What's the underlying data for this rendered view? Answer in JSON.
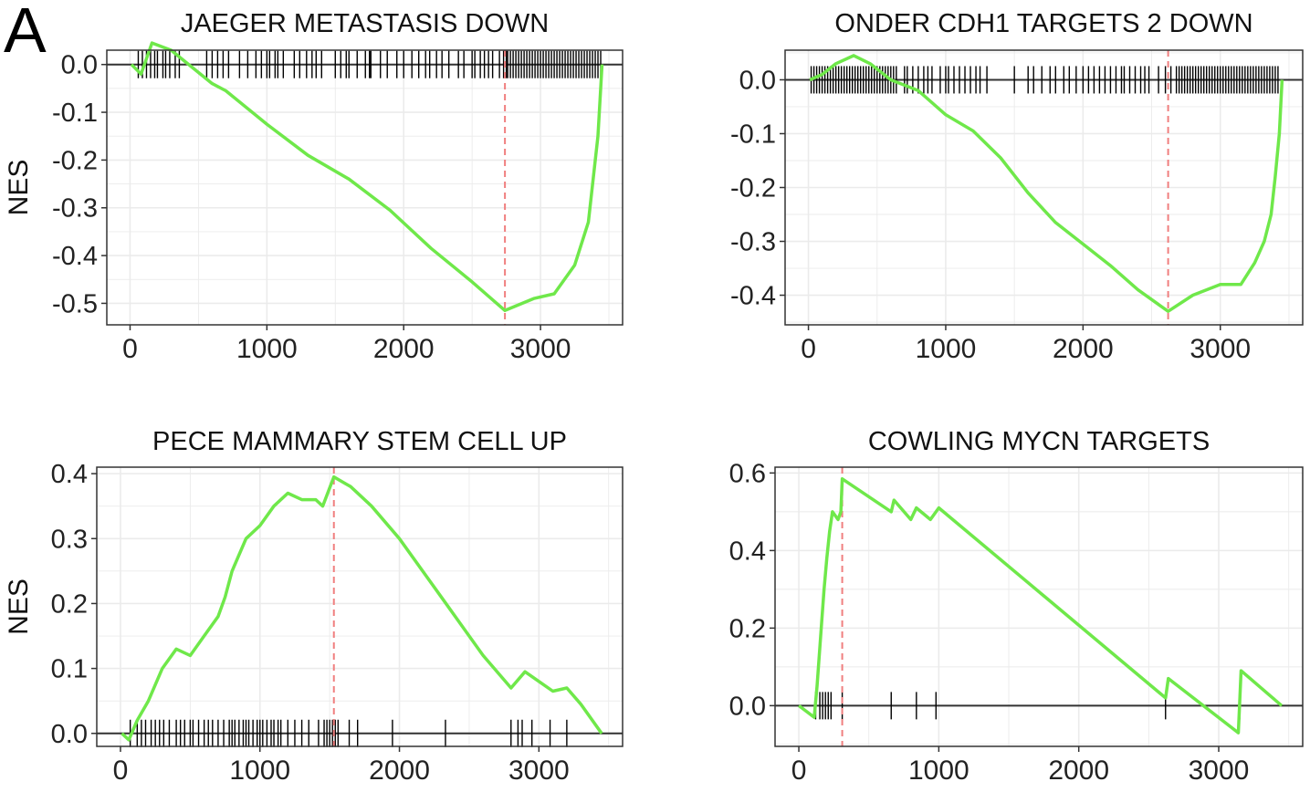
{
  "figure": {
    "panel_label": "A"
  },
  "colors": {
    "curve": "#6fe84a",
    "peak_line": "#f07f7f",
    "ticks": "#000000",
    "frame": "#333333",
    "grid": "#ebebeb"
  },
  "chart_data": [
    {
      "type": "line",
      "title": "JAEGER METASTASIS DOWN",
      "ylabel": "NES",
      "xlim": [
        -170,
        3600
      ],
      "ylim": [
        -0.545,
        0.03
      ],
      "xticks": [
        0,
        1000,
        2000,
        3000
      ],
      "xtick_labels": [
        "0",
        "1000",
        "2000",
        "3000"
      ],
      "yticks": [
        0.0,
        -0.1,
        -0.2,
        -0.3,
        -0.4,
        -0.5
      ],
      "ytick_labels": [
        "0.0",
        "-0.1",
        "-0.2",
        "-0.3",
        "-0.4",
        "-0.5"
      ],
      "grid": true,
      "baseline": 0.0,
      "peak_x": 2740,
      "rug_y": 0.0,
      "series": [
        {
          "values": [
            [
              10,
              0.0
            ],
            [
              80,
              -0.02
            ],
            [
              160,
              0.045
            ],
            [
              300,
              0.03
            ],
            [
              600,
              -0.04
            ],
            [
              700,
              -0.055
            ],
            [
              1000,
              -0.125
            ],
            [
              1300,
              -0.19
            ],
            [
              1600,
              -0.24
            ],
            [
              1900,
              -0.305
            ],
            [
              2200,
              -0.385
            ],
            [
              2500,
              -0.455
            ],
            [
              2740,
              -0.515
            ],
            [
              2950,
              -0.49
            ],
            [
              3100,
              -0.48
            ],
            [
              3250,
              -0.42
            ],
            [
              3350,
              -0.33
            ],
            [
              3420,
              -0.15
            ],
            [
              3450,
              0.0
            ]
          ]
        }
      ],
      "rug_x": [
        60,
        90,
        120,
        150,
        180,
        200,
        240,
        260,
        290,
        330,
        360,
        560,
        600,
        640,
        680,
        720,
        800,
        860,
        920,
        960,
        1000,
        1020,
        1060,
        1080,
        1120,
        1200,
        1240,
        1290,
        1330,
        1360,
        1400,
        1500,
        1540,
        1580,
        1600,
        1660,
        1720,
        1750,
        1760,
        1830,
        1880,
        1950,
        2000,
        2060,
        2110,
        2160,
        2190,
        2240,
        2280,
        2330,
        2400,
        2440,
        2500,
        2520,
        2560,
        2590,
        2620,
        2650,
        2700,
        2730,
        2750,
        2760,
        2780,
        2800,
        2820,
        2840,
        2860,
        2880,
        2900,
        2920,
        2940,
        2960,
        2980,
        3000,
        3020,
        3040,
        3060,
        3080,
        3100,
        3120,
        3140,
        3160,
        3180,
        3200,
        3220,
        3240,
        3260,
        3280,
        3300,
        3320,
        3340,
        3360,
        3380,
        3400,
        3420,
        3440
      ]
    },
    {
      "type": "line",
      "title": "ONDER CDH1 TARGETS 2 DOWN",
      "ylabel": "",
      "xlim": [
        -170,
        3600
      ],
      "ylim": [
        -0.455,
        0.055
      ],
      "xticks": [
        0,
        1000,
        2000,
        3000
      ],
      "xtick_labels": [
        "0",
        "1000",
        "2000",
        "3000"
      ],
      "yticks": [
        0.0,
        -0.1,
        -0.2,
        -0.3,
        -0.4
      ],
      "ytick_labels": [
        "0.0",
        "-0.1",
        "-0.2",
        "-0.3",
        "-0.4"
      ],
      "grid": true,
      "baseline": 0.0,
      "peak_x": 2620,
      "rug_y": 0.0,
      "series": [
        {
          "values": [
            [
              10,
              0.0
            ],
            [
              100,
              0.01
            ],
            [
              200,
              0.03
            ],
            [
              330,
              0.045
            ],
            [
              450,
              0.03
            ],
            [
              600,
              0.0
            ],
            [
              800,
              -0.02
            ],
            [
              1000,
              -0.065
            ],
            [
              1200,
              -0.095
            ],
            [
              1400,
              -0.145
            ],
            [
              1600,
              -0.21
            ],
            [
              1800,
              -0.265
            ],
            [
              2000,
              -0.305
            ],
            [
              2200,
              -0.345
            ],
            [
              2400,
              -0.39
            ],
            [
              2620,
              -0.43
            ],
            [
              2800,
              -0.4
            ],
            [
              3000,
              -0.38
            ],
            [
              3150,
              -0.38
            ],
            [
              3250,
              -0.34
            ],
            [
              3320,
              -0.3
            ],
            [
              3370,
              -0.25
            ],
            [
              3400,
              -0.18
            ],
            [
              3430,
              -0.1
            ],
            [
              3450,
              0.0
            ]
          ]
        }
      ],
      "rug_x": [
        20,
        40,
        60,
        80,
        100,
        120,
        140,
        160,
        180,
        200,
        220,
        240,
        260,
        280,
        300,
        320,
        340,
        360,
        380,
        400,
        420,
        440,
        460,
        480,
        500,
        520,
        540,
        560,
        580,
        600,
        620,
        640,
        700,
        720,
        760,
        800,
        840,
        870,
        900,
        960,
        1000,
        1020,
        1060,
        1100,
        1140,
        1180,
        1220,
        1250,
        1300,
        1500,
        1600,
        1640,
        1700,
        1760,
        1800,
        1860,
        1900,
        1950,
        2000,
        2040,
        2080,
        2120,
        2160,
        2200,
        2240,
        2280,
        2300,
        2340,
        2380,
        2420,
        2450,
        2480,
        2550,
        2600,
        2640,
        2680,
        2700,
        2720,
        2740,
        2760,
        2780,
        2800,
        2820,
        2840,
        2860,
        2880,
        2900,
        2920,
        2940,
        2960,
        2980,
        3000,
        3020,
        3040,
        3060,
        3080,
        3100,
        3120,
        3140,
        3160,
        3180,
        3200,
        3220,
        3240,
        3260,
        3280,
        3300,
        3320,
        3340,
        3360,
        3380,
        3400,
        3420
      ]
    },
    {
      "type": "line",
      "title": "PECE MAMMARY STEM CELL UP",
      "ylabel": "NES",
      "xlim": [
        -170,
        3600
      ],
      "ylim": [
        -0.02,
        0.41
      ],
      "xticks": [
        0,
        1000,
        2000,
        3000
      ],
      "xtick_labels": [
        "0",
        "1000",
        "2000",
        "3000"
      ],
      "yticks": [
        0.4,
        0.3,
        0.2,
        0.1,
        0.0
      ],
      "ytick_labels": [
        "0.4",
        "0.3",
        "0.2",
        "0.1",
        "0.0"
      ],
      "grid": true,
      "baseline": 0.0,
      "peak_x": 1530,
      "rug_y": 0.0,
      "series": [
        {
          "values": [
            [
              10,
              0.0
            ],
            [
              60,
              -0.01
            ],
            [
              120,
              0.02
            ],
            [
              200,
              0.05
            ],
            [
              300,
              0.1
            ],
            [
              400,
              0.13
            ],
            [
              500,
              0.12
            ],
            [
              600,
              0.15
            ],
            [
              700,
              0.18
            ],
            [
              750,
              0.21
            ],
            [
              800,
              0.25
            ],
            [
              900,
              0.3
            ],
            [
              1000,
              0.32
            ],
            [
              1100,
              0.35
            ],
            [
              1200,
              0.37
            ],
            [
              1300,
              0.36
            ],
            [
              1400,
              0.36
            ],
            [
              1450,
              0.35
            ],
            [
              1530,
              0.395
            ],
            [
              1650,
              0.38
            ],
            [
              1800,
              0.35
            ],
            [
              2000,
              0.3
            ],
            [
              2300,
              0.21
            ],
            [
              2600,
              0.12
            ],
            [
              2800,
              0.07
            ],
            [
              2900,
              0.095
            ],
            [
              3000,
              0.08
            ],
            [
              3100,
              0.065
            ],
            [
              3200,
              0.07
            ],
            [
              3300,
              0.045
            ],
            [
              3450,
              0.0
            ]
          ]
        }
      ],
      "rug_x": [
        70,
        120,
        150,
        180,
        220,
        250,
        280,
        310,
        350,
        400,
        430,
        460,
        500,
        520,
        560,
        600,
        630,
        660,
        700,
        740,
        780,
        800,
        820,
        850,
        880,
        900,
        920,
        950,
        980,
        1000,
        1020,
        1050,
        1080,
        1100,
        1130,
        1150,
        1200,
        1250,
        1300,
        1350,
        1420,
        1460,
        1480,
        1500,
        1520,
        1540,
        1560,
        1640,
        1700,
        1950,
        2330,
        2800,
        2850,
        2880,
        2950,
        3080,
        3200
      ]
    },
    {
      "type": "line",
      "title": "COWLING MYCN TARGETS",
      "ylabel": "",
      "xlim": [
        -170,
        3600
      ],
      "ylim": [
        -0.105,
        0.615
      ],
      "xticks": [
        0,
        1000,
        2000,
        3000
      ],
      "xtick_labels": [
        "0",
        "1000",
        "2000",
        "3000"
      ],
      "yticks": [
        0.6,
        0.4,
        0.2,
        0.0
      ],
      "ytick_labels": [
        "0.6",
        "0.4",
        "0.2",
        "0.0"
      ],
      "grid": true,
      "baseline": 0.0,
      "peak_x": 310,
      "rug_y": 0.0,
      "series": [
        {
          "values": [
            [
              0,
              0.0
            ],
            [
              110,
              -0.03
            ],
            [
              130,
              0.05
            ],
            [
              160,
              0.2
            ],
            [
              180,
              0.3
            ],
            [
              200,
              0.38
            ],
            [
              220,
              0.45
            ],
            [
              240,
              0.5
            ],
            [
              280,
              0.48
            ],
            [
              300,
              0.5
            ],
            [
              310,
              0.585
            ],
            [
              660,
              0.5
            ],
            [
              680,
              0.53
            ],
            [
              800,
              0.48
            ],
            [
              840,
              0.51
            ],
            [
              940,
              0.48
            ],
            [
              1000,
              0.51
            ],
            [
              2620,
              0.02
            ],
            [
              2640,
              0.07
            ],
            [
              3140,
              -0.07
            ],
            [
              3160,
              0.09
            ],
            [
              3450,
              0.0
            ]
          ]
        }
      ],
      "rug_x": [
        120,
        150,
        170,
        190,
        210,
        230,
        310,
        660,
        840,
        980,
        2620,
        3150
      ]
    }
  ]
}
